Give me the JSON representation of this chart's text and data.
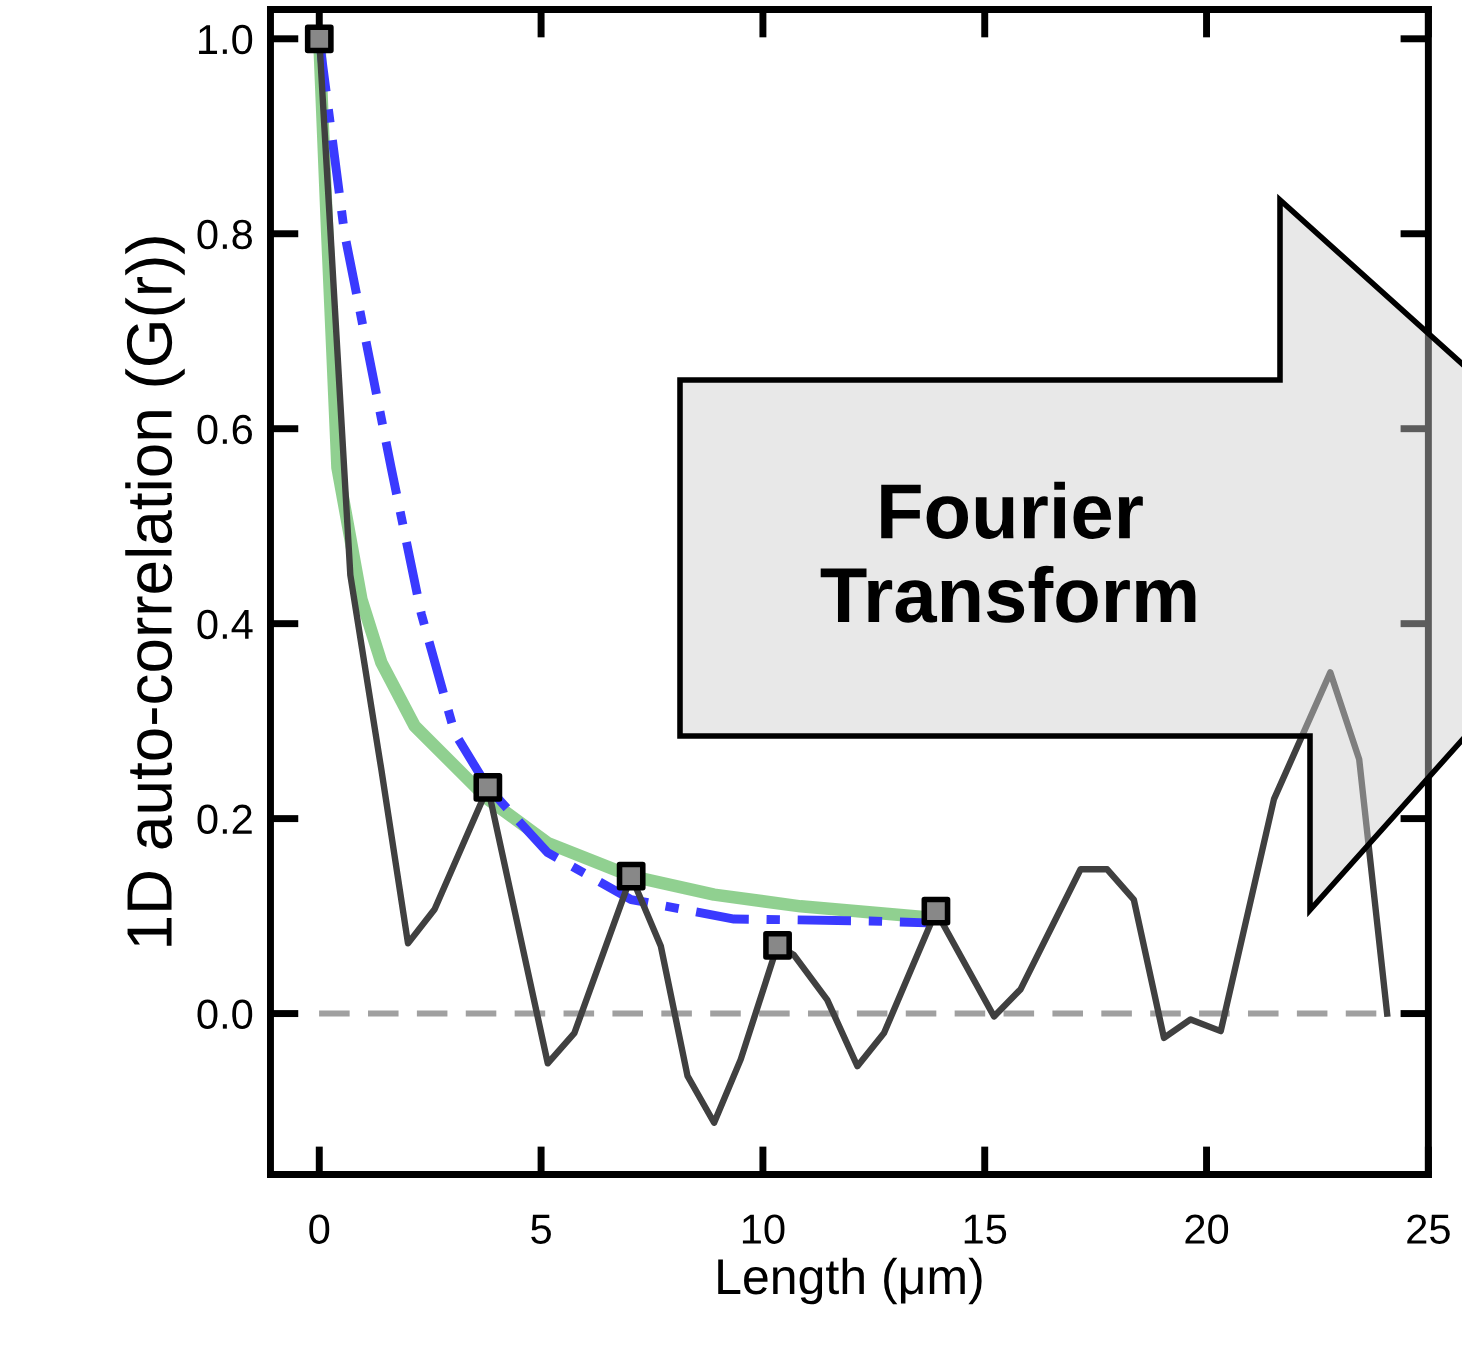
{
  "chart_data": {
    "type": "line",
    "xlabel": "Length (μm)",
    "ylabel": "1D auto-correlation (G(r))",
    "xlim": [
      -1.1,
      25
    ],
    "ylim": [
      -0.165,
      1.03
    ],
    "xticks": [
      0,
      5,
      10,
      15,
      20,
      25
    ],
    "yticks": [
      {
        "value": 0,
        "label": "0.0"
      },
      {
        "value": 0.2,
        "label": "0.2"
      },
      {
        "value": 0.4,
        "label": "0.4"
      },
      {
        "value": 0.6,
        "label": "0.6"
      },
      {
        "value": 0.8,
        "label": "0.8"
      },
      {
        "value": 1.0,
        "label": "1.0"
      }
    ],
    "grid": false,
    "legend": false,
    "ref_lines": [
      {
        "axis": "y",
        "value": 0,
        "color": "#a0a0a0",
        "line_style": "dashed"
      }
    ],
    "annotations": [
      "Fourier\nTransform"
    ],
    "series": [
      {
        "color": "#7dc87d",
        "x": [
          0,
          0.18,
          0.41,
          0.95,
          1.4,
          2.15,
          3.8,
          5.15,
          7.03,
          8.9,
          10.85,
          13.86
        ],
        "values": [
          1.0,
          0.8,
          0.56,
          0.425,
          0.36,
          0.295,
          0.22,
          0.175,
          0.141,
          0.122,
          0.11,
          0.098
        ]
      },
      {
        "color": "#3a3aff",
        "line_style": "dashdot",
        "x": [
          0,
          0.57,
          1.62,
          2.3,
          3.05,
          3.8,
          5.15,
          7.03,
          9.35,
          12.4,
          13.7
        ],
        "values": [
          1.0,
          0.8,
          0.56,
          0.41,
          0.288,
          0.232,
          0.165,
          0.117,
          0.097,
          0.095,
          0.093
        ]
      },
      {
        "color": "#404040",
        "x": [
          0,
          0.7,
          1.4,
          2.0,
          2.6,
          3.8,
          5.15,
          5.75,
          7.03,
          7.7,
          8.3,
          8.9,
          9.5,
          10.33,
          10.7,
          11.45,
          12.13,
          12.73,
          13.9,
          15.21,
          15.81,
          17.16,
          17.76,
          18.36,
          19.04,
          19.64,
          20.32,
          21.52,
          22.79,
          23.44,
          24.07
        ],
        "values": [
          1.0,
          0.45,
          0.25,
          0.072,
          0.107,
          0.232,
          -0.051,
          -0.02,
          0.141,
          0.069,
          -0.064,
          -0.112,
          -0.047,
          0.07,
          0.06,
          0.014,
          -0.054,
          -0.02,
          0.105,
          -0.003,
          0.025,
          0.148,
          0.148,
          0.117,
          -0.025,
          -0.006,
          -0.018,
          0.22,
          0.35,
          0.261,
          0.0
        ]
      },
      {
        "type": "scatter",
        "color": "#888888",
        "marker": "square",
        "x": [
          0,
          3.8,
          7.03,
          10.33,
          13.9
        ],
        "values": [
          1.0,
          0.232,
          0.141,
          0.07,
          0.105
        ]
      }
    ]
  }
}
